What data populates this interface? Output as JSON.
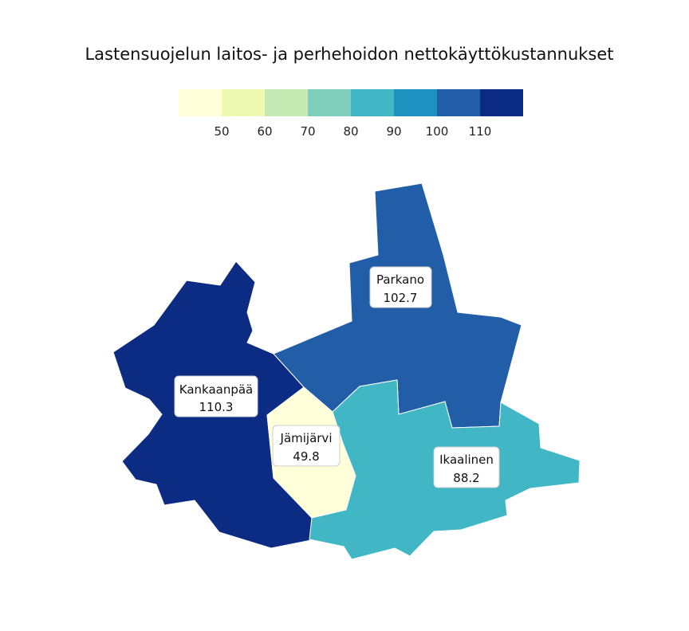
{
  "title": "Lastensuojelun laitos- ja perhehoidon nettokäyttökustannukset",
  "legend": {
    "colors": [
      "#ffffd9",
      "#edf8b1",
      "#c7e9b4",
      "#7fcdbb",
      "#41b6c4",
      "#1d91c0",
      "#225ea8",
      "#0c2c84"
    ],
    "ticks": [
      "50",
      "60",
      "70",
      "80",
      "90",
      "100",
      "110"
    ]
  },
  "regions": [
    {
      "name": "Kankaanpää",
      "value_label": "110.3",
      "value": 110.3,
      "color": "#0c2c84"
    },
    {
      "name": "Parkano",
      "value_label": "102.7",
      "value": 102.7,
      "color": "#225ea8"
    },
    {
      "name": "Jämijärvi",
      "value_label": "49.8",
      "value": 49.8,
      "color": "#ffffd9"
    },
    {
      "name": "Ikaalinen",
      "value_label": "88.2",
      "value": 88.2,
      "color": "#41b6c4"
    }
  ]
}
